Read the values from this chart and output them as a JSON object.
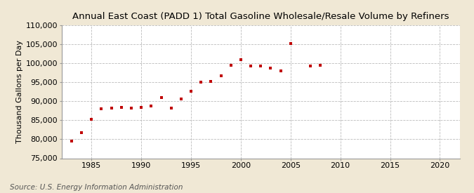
{
  "title": "Annual East Coast (PADD 1) Total Gasoline Wholesale/Resale Volume by Refiners",
  "ylabel": "Thousand Gallons per Day",
  "source": "Source: U.S. Energy Information Administration",
  "background_color": "#f0e8d5",
  "plot_background_color": "#ffffff",
  "marker_color": "#c00000",
  "years": [
    1983,
    1984,
    1985,
    1986,
    1987,
    1988,
    1989,
    1990,
    1991,
    1992,
    1993,
    1994,
    1995,
    1996,
    1997,
    1998,
    1999,
    2000,
    2001,
    2002,
    2003,
    2004,
    2005,
    2007,
    2008
  ],
  "values": [
    79500,
    81700,
    85200,
    88000,
    88100,
    88400,
    88200,
    88400,
    88800,
    91000,
    88100,
    90500,
    92700,
    95100,
    95200,
    96600,
    99400,
    101000,
    99300,
    99300,
    98700,
    97900,
    105200,
    99300,
    99400
  ],
  "xlim": [
    1982,
    2022
  ],
  "ylim": [
    75000,
    110000
  ],
  "yticks": [
    75000,
    80000,
    85000,
    90000,
    95000,
    100000,
    105000,
    110000
  ],
  "xticks": [
    1985,
    1990,
    1995,
    2000,
    2005,
    2010,
    2015,
    2020
  ],
  "grid_color": "#aaaaaa",
  "title_fontsize": 9.5,
  "axis_fontsize": 8,
  "source_fontsize": 7.5
}
